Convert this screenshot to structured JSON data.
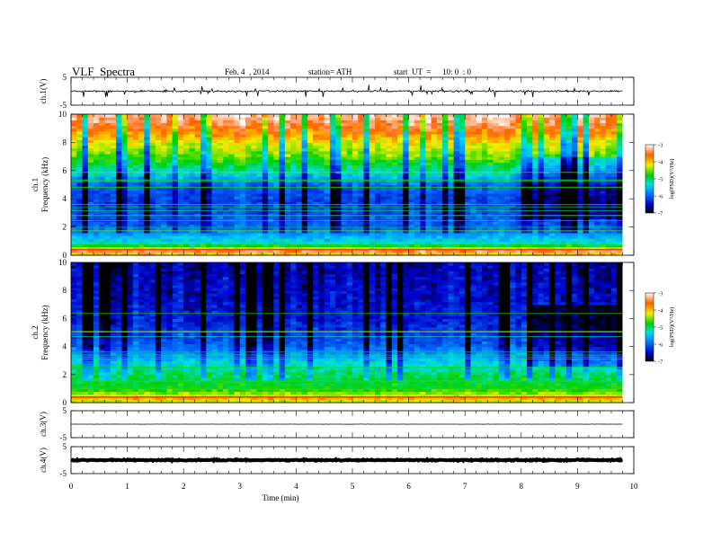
{
  "header": {
    "title": "VLF  Spectra",
    "date": "Feb. 4  , 2014",
    "station": "station= ATH",
    "start_label": "start  UT  =",
    "start_value": "10: 0  : 0"
  },
  "chart_data": {
    "type": "multi-panel",
    "xlabel": "Time  (min)",
    "xlim": [
      0,
      10
    ],
    "xticks": [
      "0",
      "1",
      "2",
      "3",
      "4",
      "5",
      "6",
      "7",
      "8",
      "9",
      "10"
    ],
    "data_end_min": 9.8,
    "panels": [
      {
        "id": "ch1-waveform",
        "type": "line",
        "ylabel": "ch.1(V)",
        "ylim": [
          -5,
          5
        ],
        "yticks": [
          "5",
          "-5"
        ],
        "series": [
          {
            "mean_v": 0.0,
            "noise_amp_v": 0.45,
            "spike_max_v": 2.3
          }
        ]
      },
      {
        "id": "ch1-spectrogram",
        "type": "heatmap",
        "ylabel": "ch.1\nFrequency  (kHz)",
        "ylim": [
          0,
          10
        ],
        "yticks": [
          "0",
          "2",
          "4",
          "6",
          "8",
          "10"
        ],
        "colorbar": {
          "label": "log(PSD)(V²/Hz)",
          "range": [
            -7,
            -3
          ],
          "ticks": [
            "-3",
            "-4",
            "-5",
            "-6",
            "-7"
          ]
        },
        "profile_khz_logpsd": [
          [
            0,
            -4.4
          ],
          [
            0.3,
            -3.4
          ],
          [
            0.8,
            -5.2
          ],
          [
            2,
            -6.0
          ],
          [
            4,
            -6.2
          ],
          [
            5,
            -6.0
          ],
          [
            6,
            -5.2
          ],
          [
            7,
            -4.6
          ],
          [
            8,
            -4.2
          ],
          [
            9,
            -3.6
          ],
          [
            10,
            -3.2
          ]
        ],
        "quieter_interval_min": [
          8.1,
          9.8
        ]
      },
      {
        "id": "ch2-spectrogram",
        "type": "heatmap",
        "ylabel": "ch.2\nFrequency  (kHz)",
        "ylim": [
          0,
          10
        ],
        "yticks": [
          "0",
          "2",
          "4",
          "6",
          "8",
          "10"
        ],
        "colorbar": {
          "label": "log(PSD)(V²/Hz)",
          "range": [
            -7,
            -3
          ],
          "ticks": [
            "-3",
            "-4",
            "-5",
            "-6",
            "-7"
          ]
        },
        "profile_khz_logpsd": [
          [
            0,
            -4.4
          ],
          [
            0.3,
            -4.0
          ],
          [
            1,
            -4.8
          ],
          [
            2,
            -5.0
          ],
          [
            3,
            -5.4
          ],
          [
            4,
            -6.0
          ],
          [
            6,
            -6.4
          ],
          [
            8,
            -6.5
          ],
          [
            10,
            -6.6
          ]
        ],
        "quieter_interval_min": [
          8.1,
          9.8
        ]
      },
      {
        "id": "ch3-waveform",
        "type": "line",
        "ylabel": "ch.3(V)",
        "ylim": [
          -5,
          5
        ],
        "yticks": [
          "5",
          "-5"
        ],
        "series": [
          {
            "mean_v": 0.0,
            "noise_amp_v": 0.05
          }
        ]
      },
      {
        "id": "ch4-waveform",
        "type": "line",
        "ylabel": "ch.4(V)",
        "ylim": [
          -5,
          5
        ],
        "yticks": [
          "5",
          "-5"
        ],
        "series": [
          {
            "mean_v": 0.0,
            "noise_amp_v": 0.3
          }
        ]
      }
    ]
  }
}
